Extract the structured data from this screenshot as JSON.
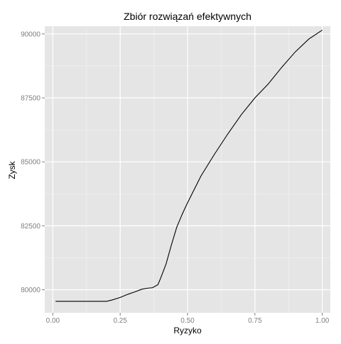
{
  "chart_data": {
    "type": "line",
    "title": "Zbiór rozwiązań efektywnych",
    "xlabel": "Ryzyko",
    "ylabel": "Zysk",
    "xlim": [
      -0.03,
      1.03
    ],
    "ylim": [
      79100,
      90300
    ],
    "x_ticks": [
      0.0,
      0.25,
      0.5,
      0.75,
      1.0
    ],
    "x_tick_labels": [
      "0.00",
      "0.25",
      "0.50",
      "0.75",
      "1.00"
    ],
    "y_ticks": [
      80000,
      82500,
      85000,
      87500,
      90000
    ],
    "y_tick_labels": [
      "80000",
      "82500",
      "85000",
      "87500",
      "90000"
    ],
    "grid": true,
    "panel_background": "#e5e5e5",
    "grid_major_color": "#ffffff",
    "grid_minor_color": "#f2f2f2",
    "line_color": "#000000",
    "series": [
      {
        "x": [
          0.01,
          0.05,
          0.1,
          0.15,
          0.2,
          0.22,
          0.25,
          0.28,
          0.3,
          0.33,
          0.35,
          0.37,
          0.39,
          0.4,
          0.42,
          0.44,
          0.46,
          0.48,
          0.5,
          0.55,
          0.6,
          0.65,
          0.7,
          0.75,
          0.8,
          0.85,
          0.9,
          0.95,
          1.0
        ],
        "y": [
          79550,
          79550,
          79550,
          79550,
          79550,
          79600,
          79700,
          79830,
          79900,
          80020,
          80060,
          80080,
          80200,
          80450,
          81000,
          81750,
          82450,
          82950,
          83400,
          84450,
          85300,
          86100,
          86850,
          87500,
          88050,
          88700,
          89300,
          89800,
          90150
        ]
      }
    ]
  }
}
